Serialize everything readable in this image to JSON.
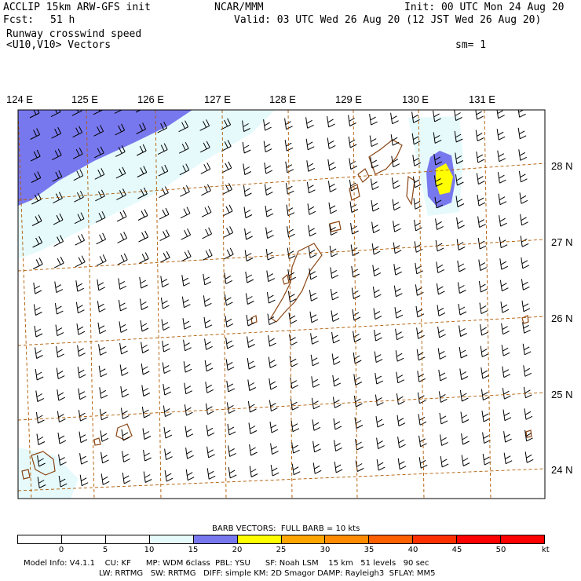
{
  "header": {
    "model": "ACCLIP 15km ARW-GFS init",
    "org": "NCAR/MMM",
    "init": "Init: 00 UTC Mon 24 Aug 20",
    "fcst_label": "Fcst:",
    "fcst_value": "51 h",
    "valid": "Valid: 03 UTC Wed 26 Aug 20 (12 JST Wed 26 Aug 20)",
    "field": "Runway crosswind speed",
    "vectors": "<U10,V10> Vectors",
    "smoothing": "sm= 1"
  },
  "map": {
    "lon_labels": [
      "124 E",
      "125 E",
      "126 E",
      "127 E",
      "128 E",
      "129 E",
      "130 E",
      "131 E"
    ],
    "lat_labels": [
      "28 N",
      "27 N",
      "26 N",
      "25 N",
      "24 N"
    ],
    "colors": {
      "below15": "#ffffff",
      "15to20": "#e6fafc",
      "20to25": "#7878ee",
      "25to30": "#ffff00",
      "gridline": "#b05a00",
      "coast": "#8b4513"
    }
  },
  "legend": {
    "barb_title": "BARB VECTORS:  FULL BARB = 10 kts",
    "levels": [
      "0",
      "5",
      "10",
      "15",
      "20",
      "25",
      "30",
      "35",
      "40",
      "45",
      "50"
    ],
    "unit": "kt",
    "colors": [
      "#ffffff",
      "#ffffff",
      "#ffffff",
      "#e6fafc",
      "#7878ee",
      "#ffff00",
      "#ffa500",
      "#ff8c00",
      "#ff6000",
      "#ff3000",
      "#ff0000",
      "#ff0000"
    ]
  },
  "footer": {
    "line1": "Model Info: V4.1.1    CU: KF      MP: WDM 6class  PBL: YSU      SF: Noah LSM    15 km   51 levels   90 sec",
    "line2": "LW: RRTMG   SW: RRTMG   DIFF: simple KM: 2D Smagor DAMP: Rayleigh3  SFLAY: MM5"
  }
}
